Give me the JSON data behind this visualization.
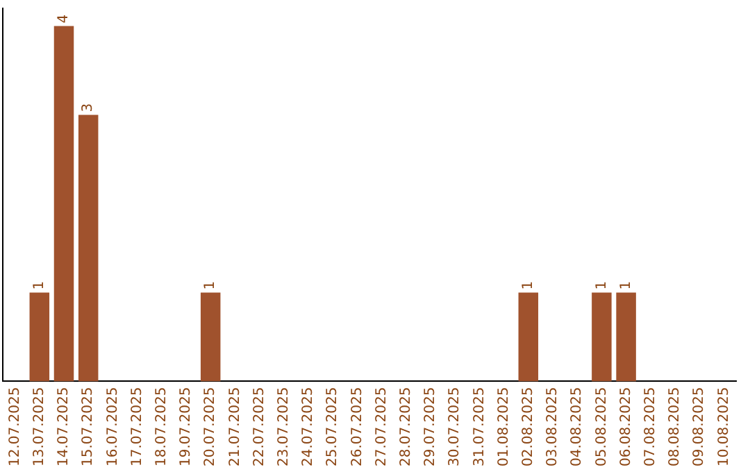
{
  "chart_data": {
    "type": "bar",
    "categories": [
      "12.07.2025",
      "13.07.2025",
      "14.07.2025",
      "15.07.2025",
      "16.07.2025",
      "17.07.2025",
      "18.07.2025",
      "19.07.2025",
      "20.07.2025",
      "21.07.2025",
      "22.07.2025",
      "23.07.2025",
      "24.07.2025",
      "25.07.2025",
      "26.07.2025",
      "27.07.2025",
      "28.07.2025",
      "29.07.2025",
      "30.07.2025",
      "31.07.2025",
      "01.08.2025",
      "02.08.2025",
      "03.08.2025",
      "04.08.2025",
      "05.08.2025",
      "06.08.2025",
      "07.08.2025",
      "08.08.2025",
      "09.08.2025",
      "10.08.2025"
    ],
    "values": [
      0,
      1,
      4,
      3,
      0,
      0,
      0,
      0,
      1,
      0,
      0,
      0,
      0,
      0,
      0,
      0,
      0,
      0,
      0,
      0,
      0,
      1,
      0,
      0,
      1,
      1,
      0,
      0,
      0,
      0
    ],
    "value_labels": [
      null,
      "1",
      "4",
      "3",
      null,
      null,
      null,
      null,
      "1",
      null,
      null,
      null,
      null,
      null,
      null,
      null,
      null,
      null,
      null,
      null,
      null,
      "1",
      null,
      null,
      "1",
      "1",
      null,
      null,
      null,
      null
    ],
    "color": "#a0522d",
    "ylim": [
      0,
      4.2
    ],
    "tick_labels": "x",
    "grid": false,
    "legend": false
  }
}
